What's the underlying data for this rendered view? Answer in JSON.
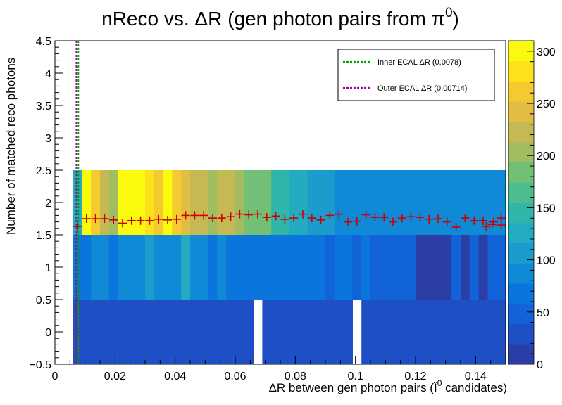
{
  "title_text": "nReco vs. ΔR (gen photon pairs from π",
  "title_sup": "0",
  "title_close": ")",
  "ylabel": "Number of matched reco photons",
  "xlabel_text": "ΔR between gen photon pairs (Ï",
  "xlabel_sup": "0",
  "xlabel_tail": " candidates)",
  "legend": [
    {
      "label": "Inner ECAL ΔR (0.0078)",
      "color": "#00a000"
    },
    {
      "label": "Outer ECAL ΔR (0.00714)",
      "color": "#a000a0"
    }
  ],
  "colors": {
    "cross": "#cc0000",
    "inner_line": "#00a000",
    "outer_line": "#a000a0",
    "palette": [
      "#2a3ea6",
      "#1e4fc4",
      "#1262d8",
      "#0a75dd",
      "#108ad6",
      "#1b9ccc",
      "#23abc0",
      "#2fb6a8",
      "#4dbd8e",
      "#73bf75",
      "#a2bd5f",
      "#c5b954",
      "#e2bd44",
      "#f5c930",
      "#fbe21a",
      "#fafa0e"
    ]
  },
  "chart_data": {
    "type": "heatmap",
    "xlim": [
      0,
      0.15
    ],
    "ylim": [
      -0.5,
      4.5
    ],
    "zlim": [
      0,
      310
    ],
    "x_ticks": [
      "0",
      "0.02",
      "0.04",
      "0.06",
      "0.08",
      "0.1",
      "0.12",
      "0.14"
    ],
    "y_ticks": [
      "−0.5",
      "0",
      "0.5",
      "1",
      "1.5",
      "2",
      "2.5",
      "3",
      "3.5",
      "4",
      "4.5"
    ],
    "z_ticks": [
      "0",
      "50",
      "100",
      "150",
      "200",
      "250",
      "300"
    ],
    "bins_x": [
      0.006,
      0.15
    ],
    "bin_width": 0.003,
    "rows": [
      {
        "y_range": [
          1.5,
          2.5
        ],
        "values": [
          120,
          300,
          265,
          220,
          200,
          300,
          310,
          300,
          285,
          265,
          295,
          255,
          235,
          230,
          215,
          210,
          215,
          215,
          200,
          185,
          180,
          175,
          145,
          140,
          120,
          120,
          110,
          110,
          115,
          95,
          95,
          95,
          90,
          90,
          95,
          95,
          95,
          95,
          95,
          90,
          90,
          95,
          95,
          90,
          95,
          90,
          95,
          90
        ]
      },
      {
        "y_range": [
          0.5,
          1.5
        ],
        "values": [
          70,
          75,
          90,
          80,
          75,
          85,
          95,
          90,
          100,
          85,
          90,
          90,
          130,
          85,
          90,
          75,
          80,
          75,
          70,
          75,
          75,
          65,
          70,
          65,
          60,
          60,
          60,
          65,
          55,
          60,
          60,
          55,
          60,
          55,
          50,
          45,
          45,
          55,
          15,
          15,
          15,
          15,
          45,
          15,
          45,
          15,
          45,
          40
        ]
      },
      {
        "y_range": [
          -0.5,
          0.5
        ],
        "values": [
          20,
          20,
          20,
          20,
          20,
          20,
          20,
          20,
          20,
          20,
          20,
          20,
          20,
          20,
          20,
          20,
          20,
          20,
          20,
          20,
          0,
          20,
          20,
          20,
          20,
          20,
          20,
          20,
          20,
          20,
          20,
          0,
          20,
          20,
          20,
          20,
          20,
          20,
          20,
          20,
          20,
          20,
          20,
          20,
          20,
          20,
          20,
          20
        ]
      }
    ],
    "profile_means": [
      1.63,
      1.75,
      1.75,
      1.75,
      1.73,
      1.68,
      1.72,
      1.72,
      1.72,
      1.74,
      1.73,
      1.74,
      1.8,
      1.8,
      1.8,
      1.76,
      1.76,
      1.78,
      1.82,
      1.81,
      1.82,
      1.77,
      1.79,
      1.74,
      1.76,
      1.82,
      1.76,
      1.73,
      1.8,
      1.82,
      1.7,
      1.71,
      1.81,
      1.77,
      1.77,
      1.7,
      1.76,
      1.78,
      1.77,
      1.74,
      1.75,
      1.7,
      1.62,
      1.76,
      1.72,
      1.72,
      1.66,
      1.76
    ],
    "profile_extra": [
      {
        "x": 0.1435,
        "y": 1.63
      },
      {
        "x": 0.146,
        "y": 1.7
      },
      {
        "x": 0.1485,
        "y": 1.65
      }
    ],
    "vlines": [
      {
        "x": 0.0078,
        "name": "Inner ECAL"
      },
      {
        "x": 0.00714,
        "name": "Outer ECAL"
      }
    ]
  }
}
